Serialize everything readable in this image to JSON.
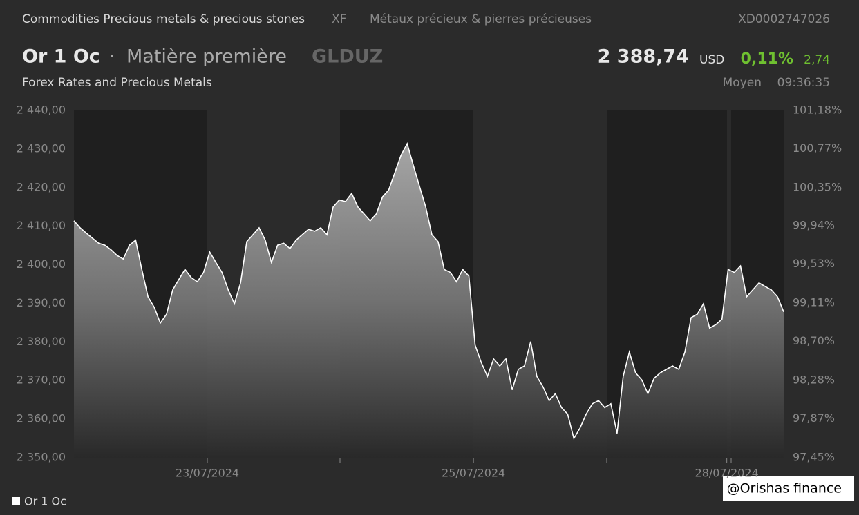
{
  "header": {
    "category": "Commodities Precious metals & precious stones",
    "exchange": "XF",
    "category_fr": "Métaux précieux & pierres précieuses",
    "isin": "XD0002747026",
    "name": "Or 1 Oc",
    "separator": "·",
    "kind": "Matière première",
    "ticker": "GLDUZ",
    "price": "2 388,74",
    "currency": "USD",
    "change_pct": "0,11%",
    "change": "2,74",
    "source": "Forex Rates and Precious Metals",
    "price_type": "Moyen",
    "time": "09:36:35"
  },
  "chart_data": {
    "type": "area",
    "series": [
      {
        "name": "Or 1 Oc",
        "color": "#ffffff",
        "axis": "y",
        "values": [
          2411.4,
          2409.6,
          2408.2,
          2406.9,
          2405.6,
          2405.1,
          2403.9,
          2402.4,
          2401.5,
          2405.1,
          2406.4,
          2398.8,
          2391.7,
          2389.0,
          2384.9,
          2387.2,
          2393.5,
          2396.2,
          2398.8,
          2396.7,
          2395.6,
          2398.0,
          2403.3,
          2400.6,
          2398.0,
          2393.5,
          2389.9,
          2395.3,
          2406.0,
          2407.8,
          2409.6,
          2406.4,
          2400.6,
          2405.1,
          2405.6,
          2404.2,
          2406.4,
          2407.8,
          2409.2,
          2408.7,
          2409.6,
          2407.8,
          2415.0,
          2416.8,
          2416.4,
          2418.5,
          2415.0,
          2413.2,
          2411.4,
          2413.2,
          2417.6,
          2419.4,
          2423.9,
          2428.4,
          2431.4,
          2425.7,
          2420.3,
          2415.0,
          2407.8,
          2406.0,
          2398.8,
          2398.0,
          2395.6,
          2398.8,
          2397.1,
          2379.2,
          2374.7,
          2371.1,
          2375.6,
          2373.8,
          2375.6,
          2367.6,
          2372.9,
          2373.8,
          2380.1,
          2371.1,
          2368.4,
          2364.8,
          2366.6,
          2363.0,
          2361.3,
          2355.0,
          2357.7,
          2361.3,
          2364.0,
          2364.8,
          2363.0,
          2364.0,
          2356.3,
          2371.1,
          2377.4,
          2372.0,
          2370.2,
          2366.6,
          2370.6,
          2372.0,
          2372.9,
          2373.8,
          2372.9,
          2377.4,
          2386.3,
          2387.2,
          2389.9,
          2383.6,
          2384.5,
          2385.9,
          2398.8,
          2398.0,
          2399.7,
          2391.7,
          2393.5,
          2395.3,
          2394.4,
          2393.5,
          2391.7,
          2387.8
        ]
      }
    ],
    "xlim": [
      0,
      116
    ],
    "xticks": [
      {
        "value": 21.8,
        "label": "23/07/2024"
      },
      {
        "value": 65.3,
        "label": "25/07/2024"
      },
      {
        "value": 106.7,
        "label": "28/07/2024"
      }
    ],
    "ylim": [
      2350,
      2440
    ],
    "yticks": [
      {
        "value": 2440,
        "label": "2 440,00"
      },
      {
        "value": 2430,
        "label": "2 430,00"
      },
      {
        "value": 2420,
        "label": "2 420,00"
      },
      {
        "value": 2410,
        "label": "2 410,00"
      },
      {
        "value": 2400,
        "label": "2 400,00"
      },
      {
        "value": 2390,
        "label": "2 390,00"
      },
      {
        "value": 2380,
        "label": "2 380,00"
      },
      {
        "value": 2370,
        "label": "2 370,00"
      },
      {
        "value": 2360,
        "label": "2 360,00"
      },
      {
        "value": 2350,
        "label": "2 350,00"
      }
    ],
    "y2lim": [
      97.45,
      101.18
    ],
    "y2ticks": [
      {
        "value": 101.18,
        "label": "101,18%"
      },
      {
        "value": 100.77,
        "label": "100,77%"
      },
      {
        "value": 100.35,
        "label": "100,35%"
      },
      {
        "value": 99.94,
        "label": "99,94%"
      },
      {
        "value": 99.53,
        "label": "99,53%"
      },
      {
        "value": 99.11,
        "label": "99,11%"
      },
      {
        "value": 98.7,
        "label": "98,70%"
      },
      {
        "value": 98.28,
        "label": "98,28%"
      },
      {
        "value": 97.87,
        "label": "97,87%"
      },
      {
        "value": 97.45,
        "label": "97,45%"
      }
    ],
    "grid": false,
    "legend": "bottom-left"
  },
  "watermark": "@Orishas finance"
}
